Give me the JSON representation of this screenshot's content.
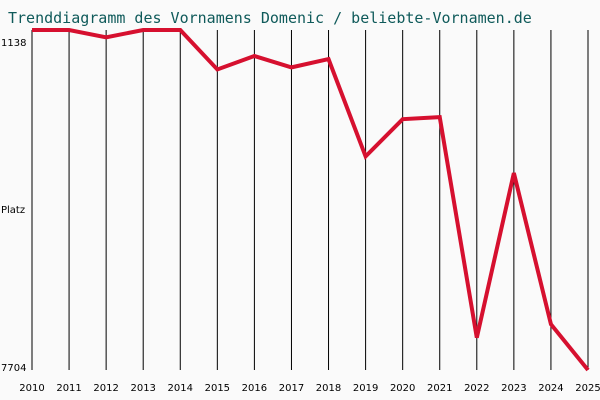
{
  "chart_data": {
    "type": "line",
    "title": "Trenddiagramm des Vornamens Domenic / beliebte-Vornamen.de",
    "ylabel": "Platz",
    "y_top_label": "1138",
    "y_bottom_label": "7704",
    "ylim": [
      1138,
      7704
    ],
    "y_inverted": true,
    "grid": "vertical",
    "x": [
      "2010",
      "2011",
      "2012",
      "2013",
      "2014",
      "2015",
      "2016",
      "2017",
      "2018",
      "2019",
      "2020",
      "2021",
      "2022",
      "2023",
      "2024",
      "2025"
    ],
    "series": [
      {
        "values": [
          1138,
          1138,
          1280,
          1138,
          1138,
          1900,
          1640,
          1860,
          1700,
          3580,
          2860,
          2820,
          7080,
          3900,
          6820,
          7704
        ],
        "color": "#d6102f"
      }
    ],
    "colors": {
      "background": "#fafafa",
      "title": "#0f5a5a",
      "grid": "#000000",
      "line": "#d6102f"
    }
  }
}
